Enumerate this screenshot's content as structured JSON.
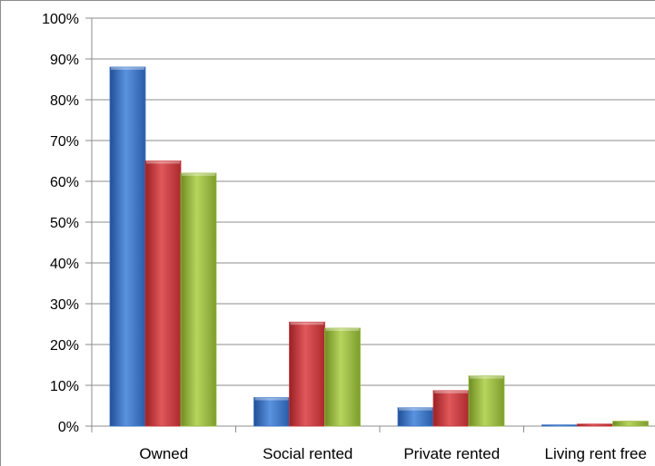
{
  "chart_data": {
    "type": "bar",
    "title": "",
    "xlabel": "",
    "ylabel": "",
    "ylim": [
      0,
      100
    ],
    "y_tick_labels": [
      "0%",
      "10%",
      "20%",
      "30%",
      "40%",
      "50%",
      "60%",
      "70%",
      "80%",
      "90%",
      "100%"
    ],
    "grid": true,
    "legend": "none",
    "categories": [
      "Owned",
      "Social rented",
      "Private rented",
      "Living rent free"
    ],
    "series": [
      {
        "color": "#3a74c6",
        "values": [
          88,
          7,
          4.5,
          0.3
        ]
      },
      {
        "color": "#c9363a",
        "values": [
          65,
          25.5,
          8.7,
          0.5
        ]
      },
      {
        "color": "#97bb3d",
        "values": [
          62,
          24,
          12.3,
          1.2
        ]
      }
    ]
  }
}
